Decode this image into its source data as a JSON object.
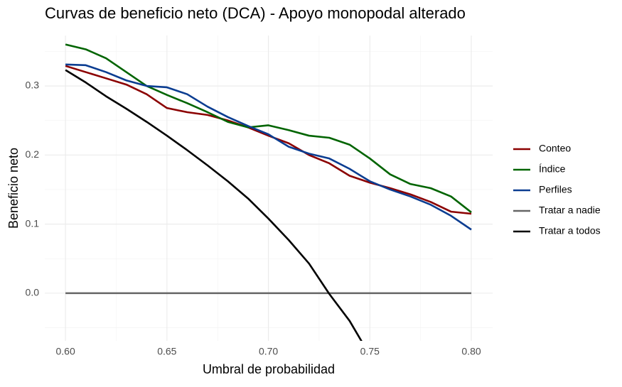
{
  "chart_data": {
    "type": "line",
    "title": "Curvas de beneficio neto (DCA) - Apoyo monopodal alterado",
    "x_label": "Umbral de probabilidad",
    "y_label": "Beneficio neto",
    "x": [
      0.6,
      0.61,
      0.62,
      0.63,
      0.64,
      0.65,
      0.66,
      0.67,
      0.68,
      0.69,
      0.7,
      0.71,
      0.72,
      0.73,
      0.74,
      0.75,
      0.76,
      0.77,
      0.78,
      0.79,
      0.8
    ],
    "series": [
      {
        "name": "Conteo",
        "color": "#8b0000",
        "values": [
          0.329,
          0.32,
          0.311,
          0.302,
          0.288,
          0.268,
          0.262,
          0.258,
          0.25,
          0.24,
          0.228,
          0.217,
          0.2,
          0.188,
          0.17,
          0.16,
          0.152,
          0.143,
          0.132,
          0.118,
          0.115
        ]
      },
      {
        "name": "Índice",
        "color": "#006400",
        "values": [
          0.36,
          0.353,
          0.34,
          0.32,
          0.3,
          0.287,
          0.275,
          0.262,
          0.248,
          0.24,
          0.243,
          0.236,
          0.228,
          0.225,
          0.215,
          0.195,
          0.172,
          0.158,
          0.152,
          0.14,
          0.117
        ]
      },
      {
        "name": "Perfiles",
        "color": "#0b3d91",
        "values": [
          0.331,
          0.33,
          0.32,
          0.308,
          0.3,
          0.298,
          0.288,
          0.27,
          0.255,
          0.242,
          0.23,
          0.212,
          0.202,
          0.195,
          0.18,
          0.162,
          0.15,
          0.14,
          0.128,
          0.112,
          0.092
        ]
      },
      {
        "name": "Tratar a nadie",
        "color": "#666666",
        "values": [
          0,
          0,
          0,
          0,
          0,
          0,
          0,
          0,
          0,
          0,
          0,
          0,
          0,
          0,
          0,
          0,
          0,
          0,
          0,
          0,
          0
        ]
      },
      {
        "name": "Tratar a todos",
        "color": "#000000",
        "values": [
          0.323,
          0.305,
          0.285,
          0.267,
          0.248,
          0.228,
          0.207,
          0.185,
          0.162,
          0.137,
          0.108,
          0.077,
          0.043,
          -0.001,
          -0.04,
          -0.09,
          null,
          null,
          null,
          null,
          null
        ]
      }
    ],
    "xlim": [
      0.5898,
      0.8105
    ],
    "ylim": [
      -0.069,
      0.373
    ],
    "xticks": [
      {
        "value": 0.6,
        "label": "0.60"
      },
      {
        "value": 0.65,
        "label": "0.65"
      },
      {
        "value": 0.7,
        "label": "0.70"
      },
      {
        "value": 0.75,
        "label": "0.75"
      },
      {
        "value": 0.8,
        "label": "0.80"
      }
    ],
    "yticks": [
      {
        "value": 0,
        "label": "0.0"
      },
      0.1,
      0.2,
      0.3
    ],
    "grid": true,
    "legend": "right"
  }
}
